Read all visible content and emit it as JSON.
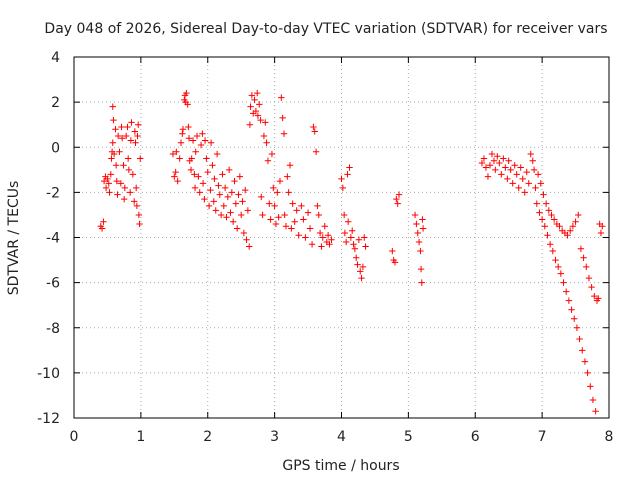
{
  "chart_data": {
    "type": "scatter",
    "title": "Day 048 of 2026, Sidereal Day-to-day VTEC variation (SDTVAR) for receiver vars",
    "xlabel": "GPS time / hours",
    "ylabel": "SDTVAR / TECUs",
    "xlim": [
      0,
      8
    ],
    "ylim": [
      -12,
      4
    ],
    "xticks": [
      0,
      1,
      2,
      3,
      4,
      5,
      6,
      7,
      8
    ],
    "yticks": [
      -12,
      -10,
      -8,
      -6,
      -4,
      -2,
      0,
      2,
      4
    ],
    "grid": true,
    "marker": "+",
    "color": "#ff0000",
    "series": [
      {
        "name": "SDTVAR",
        "points": [
          [
            0.4,
            -3.5
          ],
          [
            0.42,
            -3.6
          ],
          [
            0.44,
            -3.3
          ],
          [
            0.45,
            -1.5
          ],
          [
            0.47,
            -1.3
          ],
          [
            0.48,
            -1.8
          ],
          [
            0.5,
            -1.4
          ],
          [
            0.52,
            -1.6
          ],
          [
            0.53,
            -2.0
          ],
          [
            0.55,
            -1.2
          ],
          [
            0.56,
            -0.5
          ],
          [
            0.57,
            -0.2
          ],
          [
            0.58,
            0.2
          ],
          [
            0.58,
            1.8
          ],
          [
            0.59,
            1.2
          ],
          [
            0.6,
            -0.3
          ],
          [
            0.62,
            0.8
          ],
          [
            0.63,
            -0.8
          ],
          [
            0.64,
            -1.5
          ],
          [
            0.65,
            -2.1
          ],
          [
            0.66,
            0.5
          ],
          [
            0.68,
            -0.2
          ],
          [
            0.7,
            -1.6
          ],
          [
            0.71,
            0.9
          ],
          [
            0.72,
            0.4
          ],
          [
            0.74,
            -0.8
          ],
          [
            0.75,
            -2.3
          ],
          [
            0.76,
            -1.8
          ],
          [
            0.78,
            0.5
          ],
          [
            0.8,
            0.9
          ],
          [
            0.81,
            -0.5
          ],
          [
            0.82,
            -1.0
          ],
          [
            0.84,
            -2.0
          ],
          [
            0.85,
            0.3
          ],
          [
            0.86,
            1.1
          ],
          [
            0.88,
            -1.2
          ],
          [
            0.9,
            -2.4
          ],
          [
            0.91,
            0.7
          ],
          [
            0.92,
            0.2
          ],
          [
            0.93,
            -1.8
          ],
          [
            0.94,
            -2.6
          ],
          [
            0.95,
            0.5
          ],
          [
            0.96,
            1.0
          ],
          [
            0.97,
            -3.0
          ],
          [
            0.98,
            -3.4
          ],
          [
            0.99,
            -0.5
          ],
          [
            1.48,
            -0.3
          ],
          [
            1.5,
            -1.3
          ],
          [
            1.52,
            -1.1
          ],
          [
            1.53,
            -0.2
          ],
          [
            1.55,
            -1.5
          ],
          [
            1.58,
            -0.5
          ],
          [
            1.6,
            0.2
          ],
          [
            1.62,
            0.6
          ],
          [
            1.63,
            0.8
          ],
          [
            1.65,
            2.1
          ],
          [
            1.66,
            2.3
          ],
          [
            1.67,
            2.0
          ],
          [
            1.68,
            2.4
          ],
          [
            1.7,
            1.9
          ],
          [
            1.71,
            0.9
          ],
          [
            1.72,
            0.4
          ],
          [
            1.73,
            -0.6
          ],
          [
            1.75,
            -1.0
          ],
          [
            1.76,
            -0.5
          ],
          [
            1.78,
            0.3
          ],
          [
            1.8,
            -1.2
          ],
          [
            1.81,
            -1.8
          ],
          [
            1.82,
            -0.2
          ],
          [
            1.84,
            0.5
          ],
          [
            1.86,
            -1.3
          ],
          [
            1.88,
            -2.0
          ],
          [
            1.9,
            0.1
          ],
          [
            1.92,
            0.6
          ],
          [
            1.93,
            -1.6
          ],
          [
            1.95,
            -2.3
          ],
          [
            1.96,
            0.3
          ],
          [
            1.98,
            -0.5
          ],
          [
            2.0,
            -1.1
          ],
          [
            2.02,
            -2.6
          ],
          [
            2.04,
            -1.9
          ],
          [
            2.05,
            0.2
          ],
          [
            2.07,
            -0.8
          ],
          [
            2.09,
            -2.4
          ],
          [
            2.1,
            -1.4
          ],
          [
            2.12,
            -2.8
          ],
          [
            2.14,
            -0.3
          ],
          [
            2.16,
            -1.7
          ],
          [
            2.18,
            -2.1
          ],
          [
            2.2,
            -3.0
          ],
          [
            2.22,
            -1.2
          ],
          [
            2.24,
            -2.6
          ],
          [
            2.26,
            -1.8
          ],
          [
            2.28,
            -3.1
          ],
          [
            2.3,
            -2.2
          ],
          [
            2.32,
            -1.0
          ],
          [
            2.34,
            -2.9
          ],
          [
            2.36,
            -2.0
          ],
          [
            2.38,
            -3.3
          ],
          [
            2.4,
            -1.5
          ],
          [
            2.42,
            -2.5
          ],
          [
            2.44,
            -3.6
          ],
          [
            2.46,
            -2.1
          ],
          [
            2.48,
            -1.3
          ],
          [
            2.5,
            -3.0
          ],
          [
            2.52,
            -2.4
          ],
          [
            2.54,
            -3.8
          ],
          [
            2.56,
            -1.9
          ],
          [
            2.58,
            -4.1
          ],
          [
            2.6,
            -2.8
          ],
          [
            2.62,
            -4.4
          ],
          [
            2.63,
            1.0
          ],
          [
            2.64,
            1.8
          ],
          [
            2.66,
            2.3
          ],
          [
            2.68,
            1.5
          ],
          [
            2.7,
            2.1
          ],
          [
            2.72,
            1.6
          ],
          [
            2.74,
            2.4
          ],
          [
            2.75,
            1.4
          ],
          [
            2.77,
            1.9
          ],
          [
            2.79,
            1.2
          ],
          [
            2.8,
            -2.2
          ],
          [
            2.82,
            -3.0
          ],
          [
            2.84,
            0.5
          ],
          [
            2.86,
            1.1
          ],
          [
            2.88,
            0.2
          ],
          [
            2.9,
            -0.6
          ],
          [
            2.92,
            -2.5
          ],
          [
            2.94,
            -3.2
          ],
          [
            2.96,
            -0.3
          ],
          [
            2.98,
            -1.8
          ],
          [
            3.0,
            -2.6
          ],
          [
            3.02,
            -3.4
          ],
          [
            3.04,
            -2.0
          ],
          [
            3.06,
            -3.1
          ],
          [
            3.08,
            -1.5
          ],
          [
            3.1,
            2.2
          ],
          [
            3.12,
            1.3
          ],
          [
            3.14,
            0.6
          ],
          [
            3.15,
            -3.0
          ],
          [
            3.17,
            -3.5
          ],
          [
            3.19,
            -1.3
          ],
          [
            3.21,
            -2.0
          ],
          [
            3.23,
            -0.8
          ],
          [
            3.25,
            -3.6
          ],
          [
            3.27,
            -2.5
          ],
          [
            3.3,
            -3.3
          ],
          [
            3.33,
            -2.8
          ],
          [
            3.36,
            -3.9
          ],
          [
            3.4,
            -2.6
          ],
          [
            3.43,
            -3.2
          ],
          [
            3.46,
            -4.0
          ],
          [
            3.5,
            -2.9
          ],
          [
            3.53,
            -3.6
          ],
          [
            3.56,
            -4.3
          ],
          [
            3.58,
            0.9
          ],
          [
            3.6,
            0.7
          ],
          [
            3.62,
            -0.2
          ],
          [
            3.64,
            -2.6
          ],
          [
            3.66,
            -3.0
          ],
          [
            3.68,
            -3.8
          ],
          [
            3.7,
            -4.4
          ],
          [
            3.72,
            -4.0
          ],
          [
            3.75,
            -3.5
          ],
          [
            3.78,
            -4.2
          ],
          [
            3.8,
            -3.9
          ],
          [
            3.82,
            -4.3
          ],
          [
            3.85,
            -4.1
          ],
          [
            4.0,
            -1.4
          ],
          [
            4.02,
            -1.8
          ],
          [
            4.04,
            -3.0
          ],
          [
            4.05,
            -3.8
          ],
          [
            4.07,
            -4.2
          ],
          [
            4.09,
            -1.2
          ],
          [
            4.1,
            -3.3
          ],
          [
            4.12,
            -0.9
          ],
          [
            4.14,
            -4.0
          ],
          [
            4.16,
            -3.7
          ],
          [
            4.18,
            -4.3
          ],
          [
            4.2,
            -4.5
          ],
          [
            4.22,
            -4.9
          ],
          [
            4.24,
            -5.2
          ],
          [
            4.26,
            -4.1
          ],
          [
            4.28,
            -5.5
          ],
          [
            4.3,
            -5.8
          ],
          [
            4.32,
            -5.3
          ],
          [
            4.34,
            -4.0
          ],
          [
            4.36,
            -4.4
          ],
          [
            4.76,
            -4.6
          ],
          [
            4.78,
            -5.0
          ],
          [
            4.8,
            -5.1
          ],
          [
            4.82,
            -2.3
          ],
          [
            4.84,
            -2.5
          ],
          [
            4.86,
            -2.1
          ],
          [
            5.1,
            -3.0
          ],
          [
            5.12,
            -3.4
          ],
          [
            5.14,
            -3.8
          ],
          [
            5.16,
            -4.2
          ],
          [
            5.18,
            -4.6
          ],
          [
            5.19,
            -5.4
          ],
          [
            5.2,
            -6.0
          ],
          [
            5.21,
            -3.2
          ],
          [
            5.22,
            -3.6
          ],
          [
            6.1,
            -0.7
          ],
          [
            6.13,
            -0.5
          ],
          [
            6.16,
            -0.9
          ],
          [
            6.19,
            -1.3
          ],
          [
            6.22,
            -0.8
          ],
          [
            6.25,
            -0.3
          ],
          [
            6.28,
            -0.6
          ],
          [
            6.3,
            -1.0
          ],
          [
            6.33,
            -0.4
          ],
          [
            6.36,
            -0.7
          ],
          [
            6.39,
            -1.2
          ],
          [
            6.42,
            -0.5
          ],
          [
            6.45,
            -0.9
          ],
          [
            6.48,
            -1.4
          ],
          [
            6.5,
            -0.6
          ],
          [
            6.53,
            -1.0
          ],
          [
            6.56,
            -1.6
          ],
          [
            6.59,
            -0.8
          ],
          [
            6.62,
            -1.2
          ],
          [
            6.65,
            -1.8
          ],
          [
            6.68,
            -0.9
          ],
          [
            6.71,
            -1.4
          ],
          [
            6.74,
            -2.0
          ],
          [
            6.77,
            -1.1
          ],
          [
            6.8,
            -1.6
          ],
          [
            6.83,
            -0.3
          ],
          [
            6.86,
            -0.6
          ],
          [
            6.88,
            -1.0
          ],
          [
            6.9,
            -1.8
          ],
          [
            6.92,
            -2.5
          ],
          [
            6.94,
            -1.2
          ],
          [
            6.96,
            -2.9
          ],
          [
            6.98,
            -1.6
          ],
          [
            7.0,
            -3.2
          ],
          [
            7.02,
            -2.1
          ],
          [
            7.04,
            -3.5
          ],
          [
            7.06,
            -2.5
          ],
          [
            7.08,
            -3.9
          ],
          [
            7.1,
            -2.8
          ],
          [
            7.12,
            -4.3
          ],
          [
            7.14,
            -3.0
          ],
          [
            7.16,
            -4.6
          ],
          [
            7.18,
            -3.2
          ],
          [
            7.2,
            -5.0
          ],
          [
            7.22,
            -3.4
          ],
          [
            7.24,
            -5.3
          ],
          [
            7.26,
            -3.5
          ],
          [
            7.28,
            -5.6
          ],
          [
            7.3,
            -3.7
          ],
          [
            7.32,
            -6.0
          ],
          [
            7.34,
            -3.8
          ],
          [
            7.36,
            -6.4
          ],
          [
            7.38,
            -3.9
          ],
          [
            7.4,
            -6.8
          ],
          [
            7.42,
            -3.7
          ],
          [
            7.44,
            -7.2
          ],
          [
            7.46,
            -3.5
          ],
          [
            7.48,
            -7.6
          ],
          [
            7.5,
            -3.3
          ],
          [
            7.52,
            -8.0
          ],
          [
            7.54,
            -3.0
          ],
          [
            7.56,
            -8.5
          ],
          [
            7.58,
            -4.5
          ],
          [
            7.6,
            -9.0
          ],
          [
            7.62,
            -4.9
          ],
          [
            7.64,
            -9.5
          ],
          [
            7.66,
            -5.3
          ],
          [
            7.68,
            -10.0
          ],
          [
            7.7,
            -5.8
          ],
          [
            7.72,
            -10.6
          ],
          [
            7.74,
            -6.2
          ],
          [
            7.76,
            -11.2
          ],
          [
            7.78,
            -6.6
          ],
          [
            7.8,
            -11.7
          ],
          [
            7.82,
            -6.8
          ],
          [
            7.84,
            -6.7
          ],
          [
            7.86,
            -3.4
          ],
          [
            7.88,
            -3.8
          ],
          [
            7.9,
            -3.5
          ]
        ]
      }
    ]
  }
}
